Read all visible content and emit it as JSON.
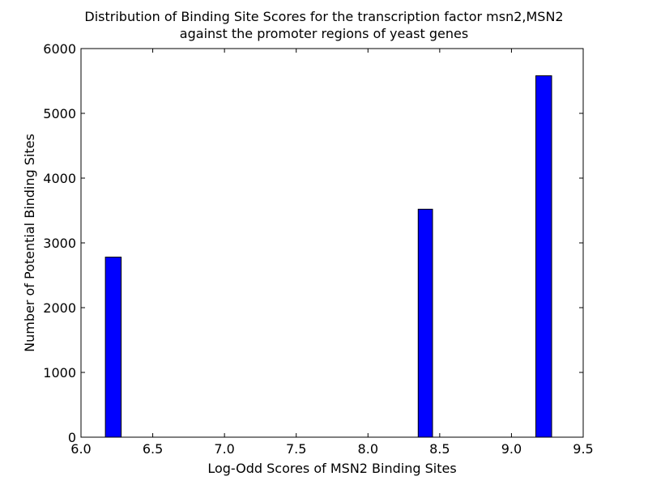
{
  "chart_data": {
    "type": "bar",
    "title_lines": [
      "Distribution of Binding Site Scores for the transcription factor msn2,MSN2",
      "against the promoter regions of yeast genes"
    ],
    "xlabel": "Log-Odd Scores of MSN2 Binding Sites",
    "ylabel": "Number of Potential Binding Sites",
    "xlim": [
      6.0,
      9.5
    ],
    "ylim": [
      0,
      6000
    ],
    "xticks": [
      6.0,
      6.5,
      7.0,
      7.5,
      8.0,
      8.5,
      9.0,
      9.5
    ],
    "xtick_labels": [
      "6.0",
      "6.5",
      "7.0",
      "7.5",
      "8.0",
      "8.5",
      "9.0",
      "9.5"
    ],
    "yticks": [
      0,
      1000,
      2000,
      3000,
      4000,
      5000,
      6000
    ],
    "ytick_labels": [
      "0",
      "1000",
      "2000",
      "3000",
      "4000",
      "5000",
      "6000"
    ],
    "bin_width": 0.1,
    "bars": [
      {
        "x_start": 6.17,
        "x_end": 6.28,
        "value": 2780
      },
      {
        "x_start": 8.35,
        "x_end": 8.45,
        "value": 3520
      },
      {
        "x_start": 9.17,
        "x_end": 9.28,
        "value": 5580
      }
    ],
    "grid": false,
    "colors": {
      "bar_fill": "#0000ff",
      "bar_edge": "#000000",
      "axes": "#000000"
    }
  }
}
